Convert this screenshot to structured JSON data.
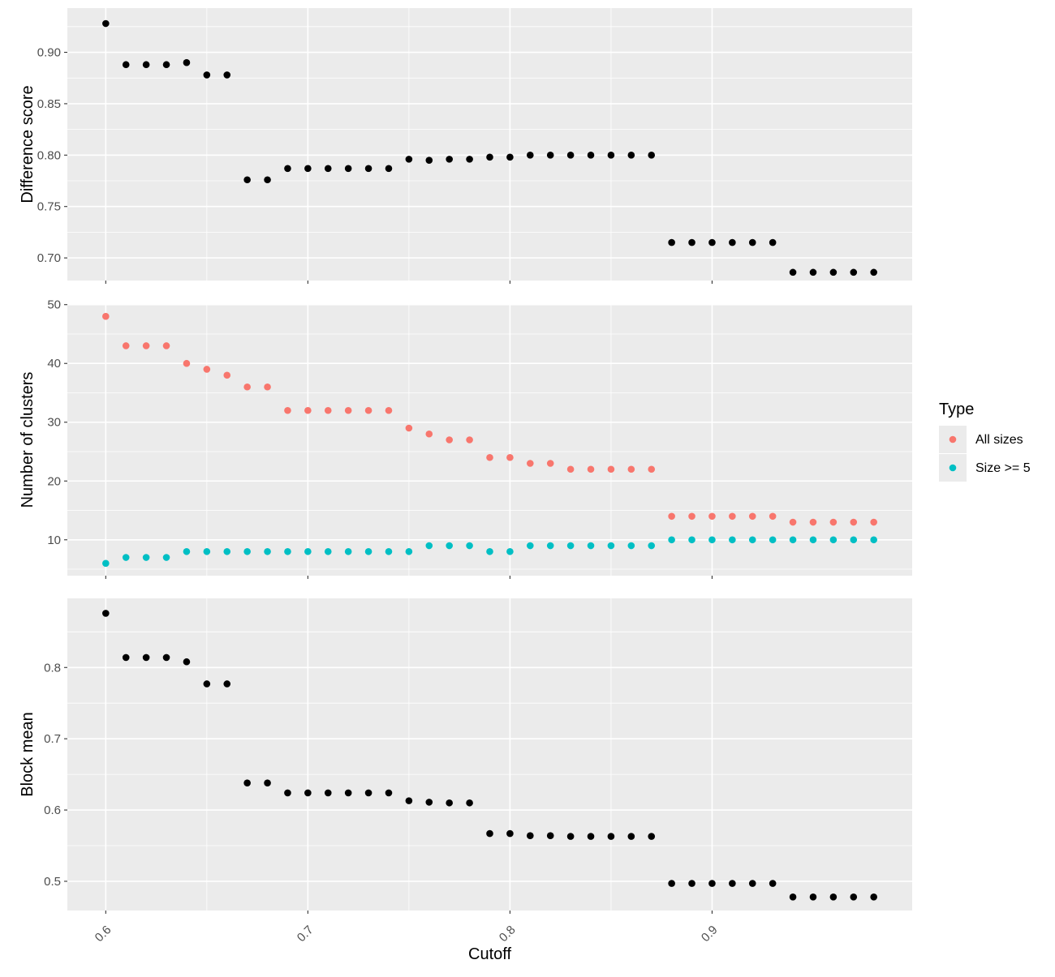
{
  "chart_data": {
    "type": "scatter",
    "xlabel": "Cutoff",
    "x_ticks": [
      "0.6",
      "0.7",
      "0.8",
      "0.9"
    ],
    "xlim": [
      0.581,
      0.999
    ],
    "x": [
      0.6,
      0.61,
      0.62,
      0.63,
      0.64,
      0.65,
      0.66,
      0.67,
      0.68,
      0.69,
      0.7,
      0.71,
      0.72,
      0.73,
      0.74,
      0.75,
      0.76,
      0.77,
      0.78,
      0.79,
      0.8,
      0.81,
      0.82,
      0.83,
      0.84,
      0.85,
      0.86,
      0.87,
      0.88,
      0.89,
      0.9,
      0.91,
      0.92,
      0.93,
      0.94,
      0.95,
      0.96,
      0.97,
      0.98
    ],
    "grid": true,
    "legend": {
      "title": "Type",
      "position": "right",
      "items": [
        {
          "label": "All sizes",
          "color": "#F8766D"
        },
        {
          "label": "Size >= 5",
          "color": "#00BFC4"
        }
      ]
    },
    "panels": [
      {
        "id": "difference",
        "ylabel": "Difference score",
        "ylim": [
          0.678,
          0.943
        ],
        "y_ticks": [
          "0.70",
          "0.75",
          "0.80",
          "0.85",
          "0.90"
        ],
        "series": [
          {
            "color": "#000000",
            "values": [
              0.928,
              0.888,
              0.888,
              0.888,
              0.89,
              0.878,
              0.878,
              0.776,
              0.776,
              0.787,
              0.787,
              0.787,
              0.787,
              0.787,
              0.787,
              0.796,
              0.795,
              0.796,
              0.796,
              0.798,
              0.798,
              0.8,
              0.8,
              0.8,
              0.8,
              0.8,
              0.8,
              0.8,
              0.715,
              0.715,
              0.715,
              0.715,
              0.715,
              0.715,
              0.686,
              0.686,
              0.686,
              0.686,
              0.686
            ]
          }
        ]
      },
      {
        "id": "clusters",
        "ylabel": "Number of clusters",
        "ylim": [
          3.9,
          50.1
        ],
        "y_ticks": [
          "10",
          "20",
          "30",
          "40",
          "50"
        ],
        "series": [
          {
            "name": "All sizes",
            "color": "#F8766D",
            "values": [
              48,
              43,
              43,
              43,
              40,
              39,
              38,
              36,
              36,
              32,
              32,
              32,
              32,
              32,
              32,
              29,
              28,
              27,
              27,
              24,
              24,
              23,
              23,
              22,
              22,
              22,
              22,
              22,
              14,
              14,
              14,
              14,
              14,
              14,
              13,
              13,
              13,
              13,
              13
            ]
          },
          {
            "name": "Size >= 5",
            "color": "#00BFC4",
            "values": [
              6,
              7,
              7,
              7,
              8,
              8,
              8,
              8,
              8,
              8,
              8,
              8,
              8,
              8,
              8,
              8,
              9,
              9,
              9,
              8,
              8,
              9,
              9,
              9,
              9,
              9,
              9,
              9,
              10,
              10,
              10,
              10,
              10,
              10,
              10,
              10,
              10,
              10,
              10
            ]
          }
        ]
      },
      {
        "id": "block",
        "ylabel": "Block mean",
        "ylim": [
          0.459,
          0.897
        ],
        "y_ticks": [
          "0.5",
          "0.6",
          "0.7",
          "0.8"
        ],
        "series": [
          {
            "color": "#000000",
            "values": [
              0.876,
              0.814,
              0.814,
              0.814,
              0.808,
              0.777,
              0.777,
              0.638,
              0.638,
              0.624,
              0.624,
              0.624,
              0.624,
              0.624,
              0.624,
              0.613,
              0.611,
              0.61,
              0.61,
              0.567,
              0.567,
              0.564,
              0.564,
              0.563,
              0.563,
              0.563,
              0.563,
              0.563,
              0.497,
              0.497,
              0.497,
              0.497,
              0.497,
              0.497,
              0.478,
              0.478,
              0.478,
              0.478,
              0.478
            ]
          }
        ]
      }
    ]
  }
}
